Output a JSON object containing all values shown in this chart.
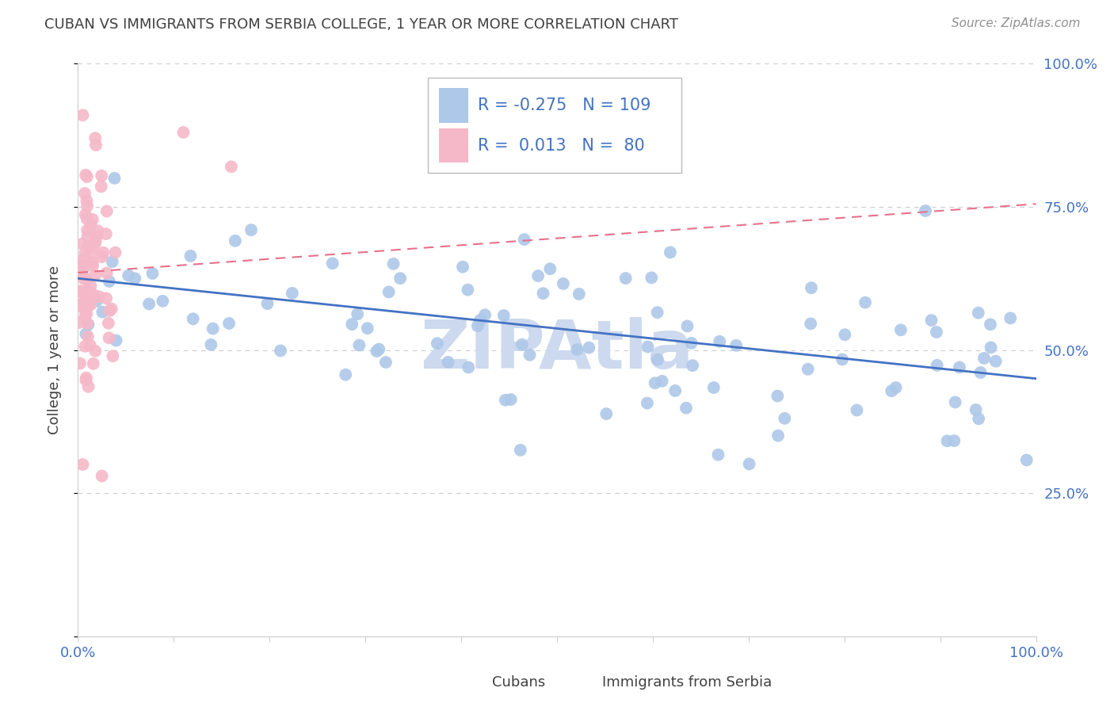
{
  "title": "CUBAN VS IMMIGRANTS FROM SERBIA COLLEGE, 1 YEAR OR MORE CORRELATION CHART",
  "source": "Source: ZipAtlas.com",
  "ylabel": "College, 1 year or more",
  "legend_r1": "-0.275",
  "legend_n1": "109",
  "legend_r2": "0.013",
  "legend_n2": "80",
  "blue_color": "#adc8e8",
  "pink_color": "#f5b8c8",
  "blue_line_color": "#4472c4",
  "pink_line_color": "#e8708a",
  "title_color": "#404040",
  "source_color": "#909090",
  "axis_label_color": "#4472c4",
  "grid_color": "#cccccc",
  "watermark_color": "#ccd9ee",
  "watermark_text": "ZIPAtla",
  "cubans_seed": 12,
  "serbia_seed": 7
}
